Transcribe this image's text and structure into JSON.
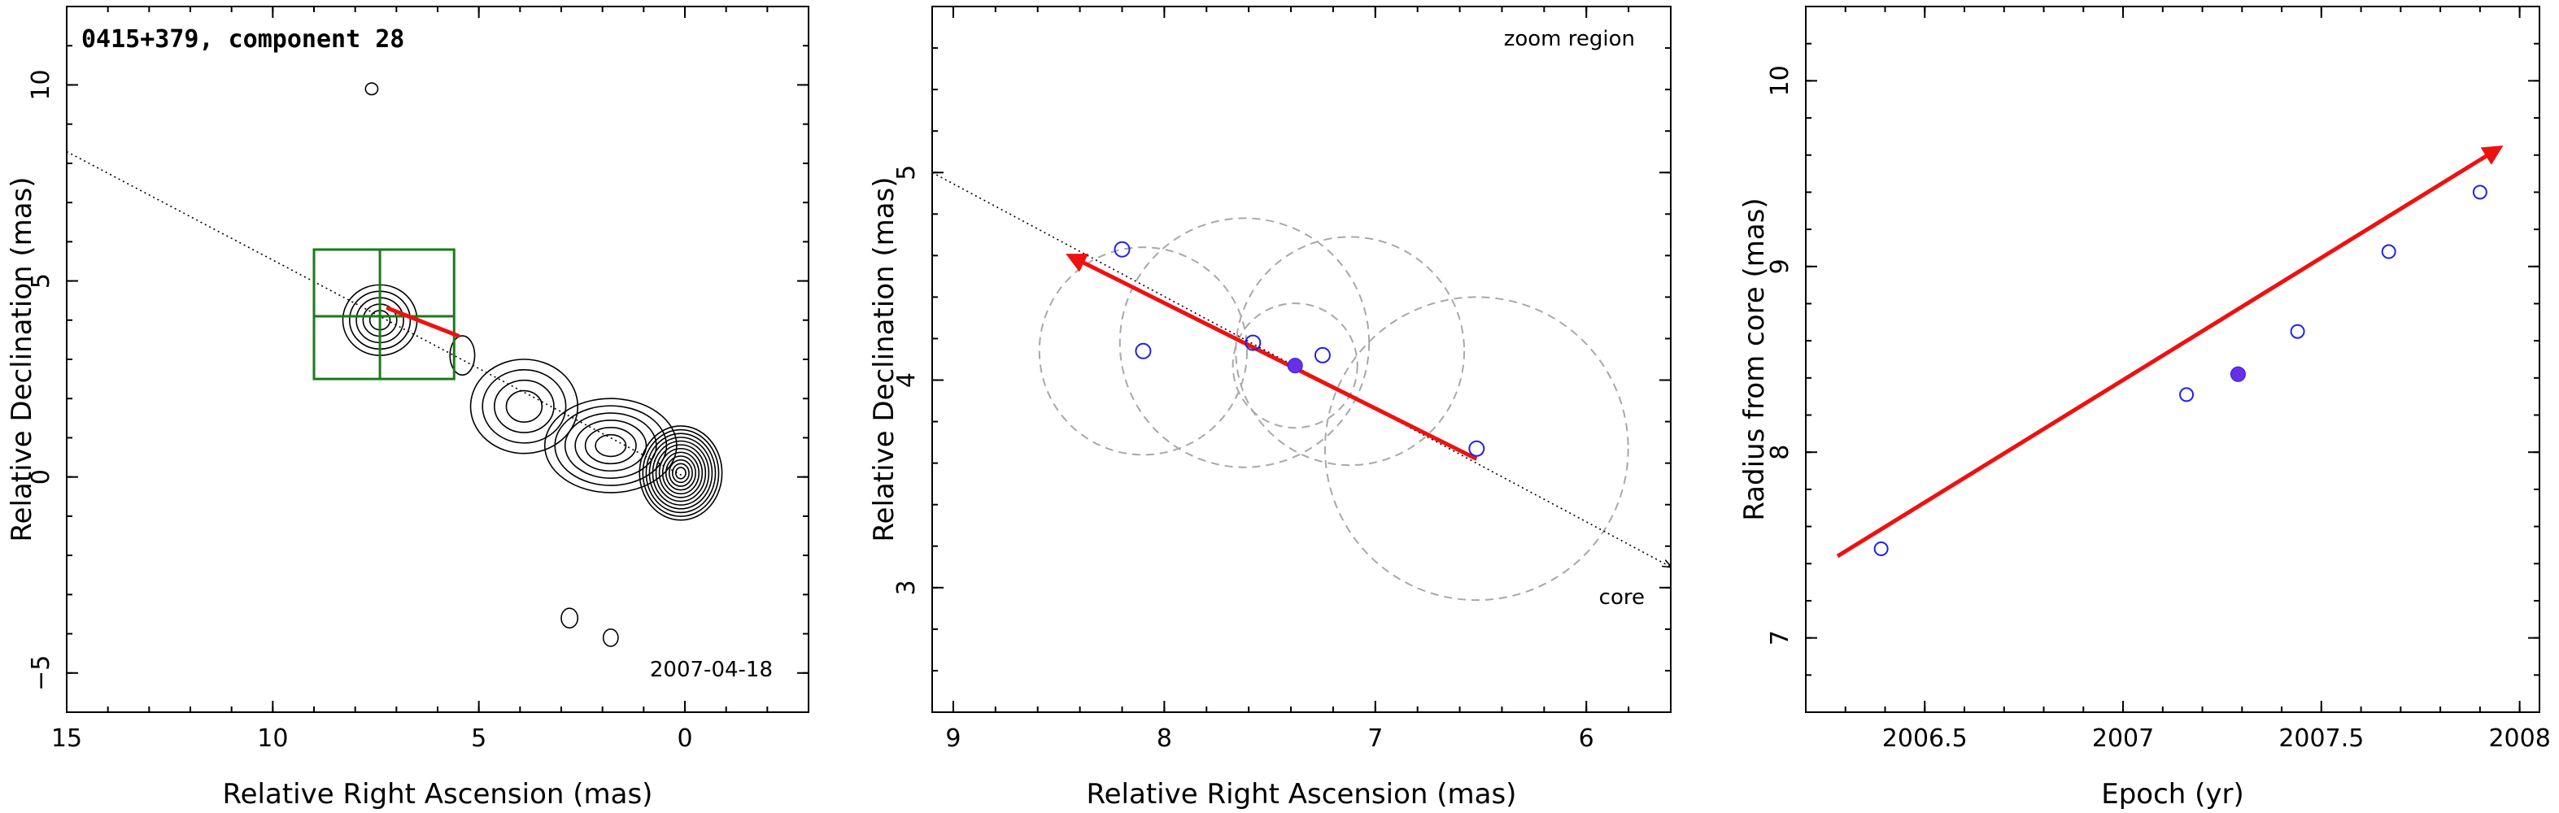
{
  "colors": {
    "arrow": "#ee1111",
    "box": "#1a7a1a",
    "points": "#2020ee",
    "filled_point": "#6a2ee6",
    "circles": "#a8a8a8"
  },
  "chart_data": [
    {
      "type": "contour",
      "title": "0415+379, component 28",
      "date_label": "2007-04-18",
      "xlabel": "Relative Right Ascension (mas)",
      "ylabel": "Relative Declination (mas)",
      "xlim": [
        15,
        -3
      ],
      "ylim": [
        -6,
        12
      ],
      "xticks": [
        15,
        10,
        5,
        0
      ],
      "yticks": [
        -5,
        0,
        5,
        10
      ],
      "jet_direction_line": {
        "from": [
          15,
          8.3
        ],
        "to": [
          0,
          0
        ]
      },
      "component_arrow": {
        "from": [
          7.2,
          4.3
        ],
        "to": [
          5.5,
          3.6
        ]
      },
      "zoom_box": {
        "x": [
          9,
          5.6
        ],
        "y": [
          2.5,
          5.8
        ],
        "grid_x": 7.4,
        "grid_y": 4.1
      },
      "contour_blobs": [
        {
          "x": 0.1,
          "y": 0.1,
          "rx": 1.0,
          "ry": 1.2,
          "levels": 12
        },
        {
          "x": 1.8,
          "y": 0.8,
          "rx": 1.6,
          "ry": 1.2,
          "levels": 6
        },
        {
          "x": 3.9,
          "y": 1.8,
          "rx": 1.3,
          "ry": 1.2,
          "levels": 4
        },
        {
          "x": 7.4,
          "y": 4.0,
          "rx": 0.9,
          "ry": 0.9,
          "levels": 5
        },
        {
          "x": 5.4,
          "y": 3.1,
          "rx": 0.3,
          "ry": 0.5,
          "levels": 1
        },
        {
          "x": 7.6,
          "y": 9.9,
          "rx": 0.15,
          "ry": 0.15,
          "levels": 1
        },
        {
          "x": 2.8,
          "y": -3.6,
          "rx": 0.2,
          "ry": 0.25,
          "levels": 1
        },
        {
          "x": 1.8,
          "y": -4.1,
          "rx": 0.18,
          "ry": 0.22,
          "levels": 1
        }
      ]
    },
    {
      "type": "scatter",
      "corner_label": "zoom region",
      "core_label": "core",
      "xlabel": "Relative Right Ascension (mas)",
      "ylabel": "Relative Declination (mas)",
      "xlim": [
        9.1,
        5.6
      ],
      "ylim": [
        2.4,
        5.8
      ],
      "xticks": [
        9,
        8,
        7,
        6
      ],
      "yticks": [
        3,
        4,
        5
      ],
      "points": [
        [
          8.2,
          4.63
        ],
        [
          8.1,
          4.14
        ],
        [
          7.58,
          4.18
        ],
        [
          7.25,
          4.12
        ],
        [
          6.52,
          3.67
        ]
      ],
      "filled_point": [
        7.38,
        4.07
      ],
      "circles": [
        {
          "x": 8.1,
          "y": 4.14,
          "r": 0.5
        },
        {
          "x": 7.62,
          "y": 4.18,
          "r": 0.6
        },
        {
          "x": 7.12,
          "y": 4.14,
          "r": 0.55
        },
        {
          "x": 7.38,
          "y": 4.07,
          "r": 0.3
        },
        {
          "x": 6.52,
          "y": 3.67,
          "r": 0.73
        }
      ],
      "dotted_line": {
        "from": [
          9.1,
          5.0
        ],
        "to": [
          5.6,
          3.1
        ]
      },
      "arrow": {
        "from": [
          6.52,
          3.62
        ],
        "to": [
          8.45,
          4.6
        ]
      }
    },
    {
      "type": "scatter",
      "xlabel": "Epoch (yr)",
      "ylabel": "Radius from core (mas)",
      "xlim": [
        2006.2,
        2008.05
      ],
      "ylim": [
        6.6,
        10.4
      ],
      "xticks": [
        2006.5,
        2007,
        2007.5,
        2008
      ],
      "yticks": [
        7,
        8,
        9,
        10
      ],
      "points": [
        [
          2006.39,
          7.48
        ],
        [
          2007.16,
          8.31
        ],
        [
          2007.44,
          8.65
        ],
        [
          2007.67,
          9.08
        ],
        [
          2007.9,
          9.4
        ]
      ],
      "filled_point": [
        2007.29,
        8.42
      ],
      "fit_arrow": {
        "from": [
          2006.28,
          7.44
        ],
        "to": [
          2007.95,
          9.64
        ]
      }
    }
  ]
}
